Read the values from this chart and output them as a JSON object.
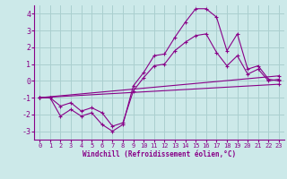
{
  "background_color": "#cce9e9",
  "grid_color": "#aacfcf",
  "line_color": "#880088",
  "xlim": [
    -0.5,
    23.5
  ],
  "ylim": [
    -3.5,
    4.5
  ],
  "yticks": [
    -3,
    -2,
    -1,
    0,
    1,
    2,
    3,
    4
  ],
  "xticks": [
    0,
    1,
    2,
    3,
    4,
    5,
    6,
    7,
    8,
    9,
    10,
    11,
    12,
    13,
    14,
    15,
    16,
    17,
    18,
    19,
    20,
    21,
    22,
    23
  ],
  "xlabel": "Windchill (Refroidissement éolien,°C)",
  "line1_x": [
    0,
    1,
    2,
    3,
    4,
    5,
    6,
    7,
    8,
    9,
    10,
    11,
    12,
    13,
    14,
    15,
    16,
    17,
    18,
    19,
    20,
    21,
    22,
    23
  ],
  "line1_y": [
    -1.0,
    -1.0,
    -2.1,
    -1.7,
    -2.1,
    -1.9,
    -2.6,
    -3.0,
    -2.6,
    -0.3,
    0.5,
    1.5,
    1.6,
    2.6,
    3.5,
    4.3,
    4.3,
    3.8,
    1.8,
    2.8,
    0.7,
    0.9,
    0.1,
    0.0
  ],
  "line2_x": [
    0,
    1,
    2,
    3,
    4,
    5,
    6,
    7,
    8,
    9,
    10,
    11,
    12,
    13,
    14,
    15,
    16,
    17,
    18,
    19,
    20,
    21,
    22,
    23
  ],
  "line2_y": [
    -1.0,
    -1.0,
    -1.5,
    -1.3,
    -1.8,
    -1.6,
    -1.9,
    -2.7,
    -2.5,
    -0.6,
    0.2,
    0.9,
    1.0,
    1.8,
    2.3,
    2.7,
    2.8,
    1.7,
    0.9,
    1.5,
    0.4,
    0.7,
    0.0,
    0.1
  ],
  "line3_x": [
    0,
    23
  ],
  "line3_y": [
    -1.0,
    0.3
  ],
  "line4_x": [
    0,
    23
  ],
  "line4_y": [
    -1.0,
    -0.2
  ]
}
